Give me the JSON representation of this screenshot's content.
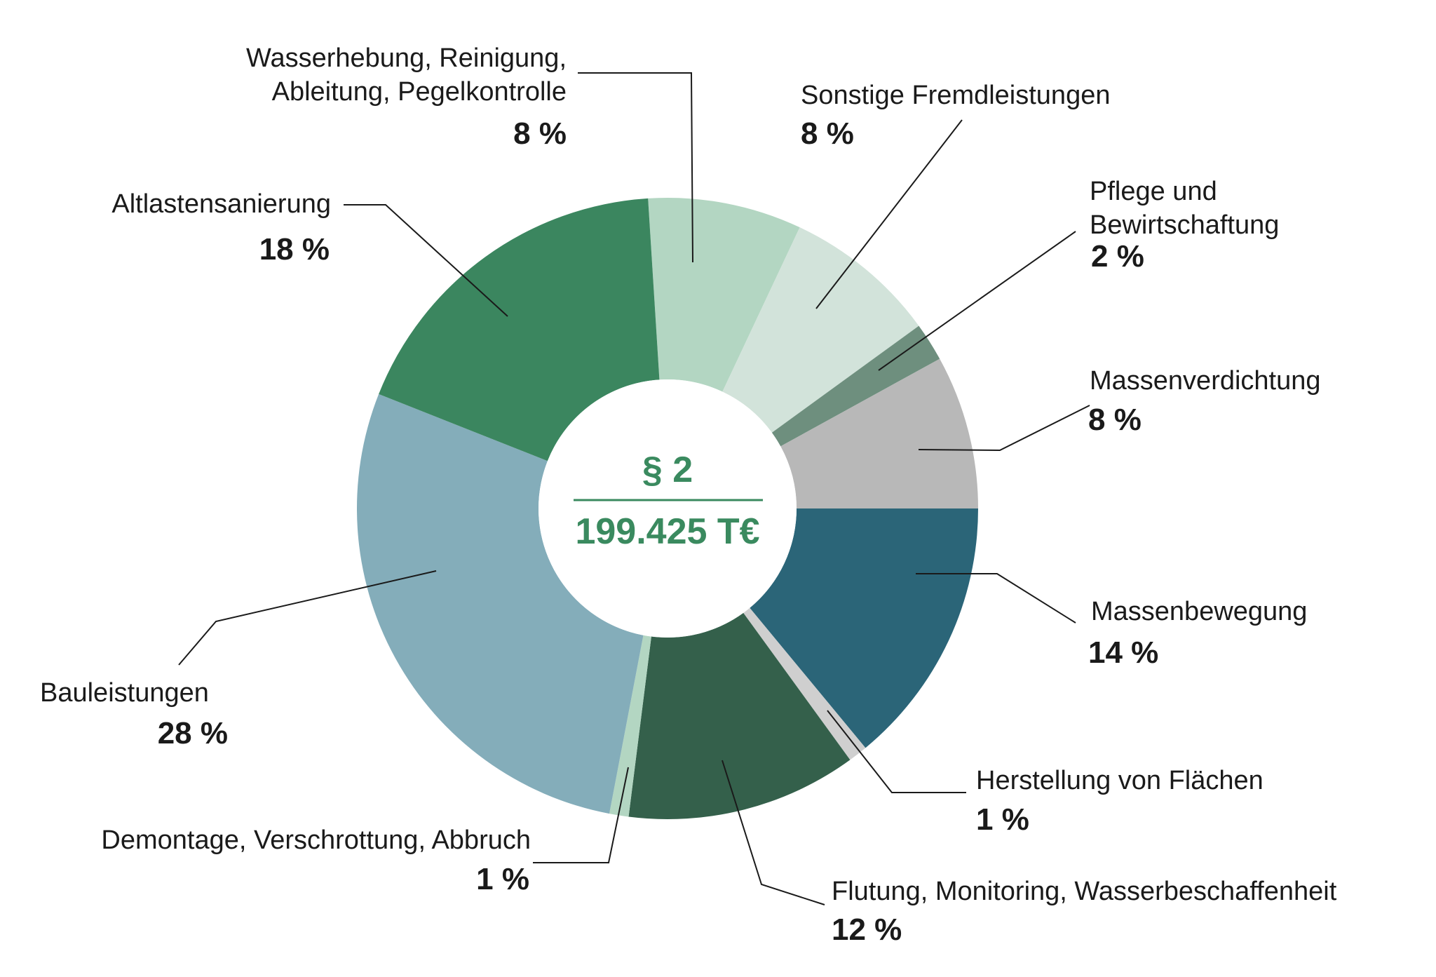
{
  "chart_data": {
    "type": "pie",
    "center": {
      "title": "§ 2",
      "value": "199.425 T€"
    },
    "slices": [
      {
        "label": [
          "Wasserhebung, Reinigung,",
          "Ableitung, Pegelkontrolle"
        ],
        "percent_label": "8 %",
        "value": 8,
        "color": "#b3d6c2"
      },
      {
        "label": [
          "Sonstige Fremdleistungen"
        ],
        "percent_label": "8 %",
        "value": 8,
        "color": "#d2e3da"
      },
      {
        "label": [
          "Pflege und",
          "Bewirtschaftung"
        ],
        "percent_label": "2 %",
        "value": 2,
        "color": "#6e8f7e"
      },
      {
        "label": [
          "Massenverdichtung"
        ],
        "percent_label": "8 %",
        "value": 8,
        "color": "#b8b8b8"
      },
      {
        "label": [
          "Massenbewegung"
        ],
        "percent_label": "14 %",
        "value": 14,
        "color": "#2b6578"
      },
      {
        "label": [
          "Herstellung von Flächen"
        ],
        "percent_label": "1 %",
        "value": 1,
        "color": "#cfcfcf"
      },
      {
        "label": [
          "Flutung, Monitoring, Wasserbeschaffenheit"
        ],
        "percent_label": "12 %",
        "value": 12,
        "color": "#34604b"
      },
      {
        "label": [
          "Demontage, Verschrottung, Abbruch"
        ],
        "percent_label": "1 %",
        "value": 1,
        "color": "#b3d6c2"
      },
      {
        "label": [
          "Bauleistungen"
        ],
        "percent_label": "28 %",
        "value": 28,
        "color": "#84adba"
      },
      {
        "label": [
          "Altlastensanierung"
        ],
        "percent_label": "18 %",
        "value": 18,
        "color": "#3b865f"
      }
    ]
  }
}
